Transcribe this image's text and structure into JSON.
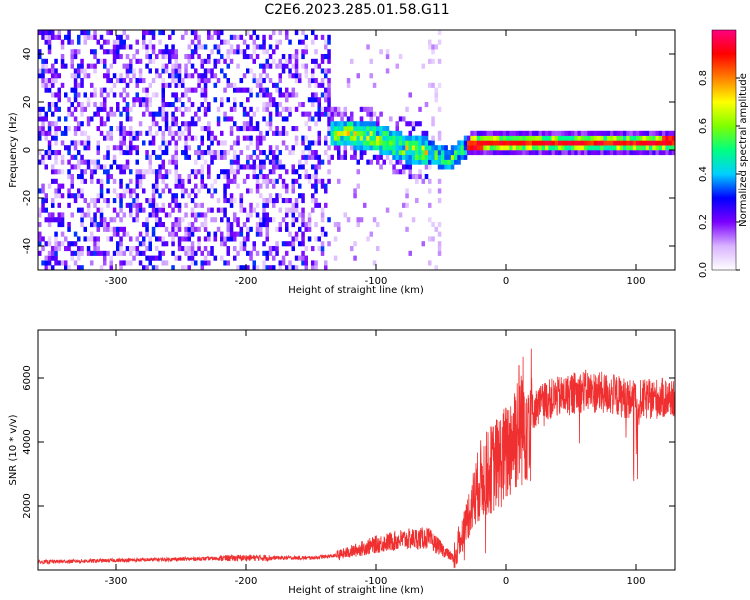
{
  "title": "C2E6.2023.285.01.58.G11",
  "chart_data": [
    {
      "type": "heatmap",
      "xlabel": "Height of straight line (km)",
      "ylabel": "Frequency (Hz)",
      "xlim": [
        -360,
        130
      ],
      "ylim": [
        -50,
        50
      ],
      "x_ticks": [
        -300,
        -200,
        -100,
        0,
        100
      ],
      "y_ticks": [
        -40,
        -20,
        0,
        20,
        40
      ],
      "colorbar": {
        "label": "Normalized spectral amplitude",
        "range": [
          0,
          1
        ],
        "ticks": [
          0.0,
          0.2,
          0.4,
          0.6,
          0.8
        ],
        "colors": [
          "#ffffff",
          "#d9b3ff",
          "#7a00ff",
          "#0000ff",
          "#00d0ff",
          "#00ff80",
          "#80ff00",
          "#ffff00",
          "#ff8000",
          "#ff0000",
          "#ff0080"
        ]
      },
      "ridge": {
        "x": [
          -260,
          -200,
          -150,
          -120,
          -100,
          -80,
          -60,
          -45,
          -30,
          0,
          50,
          100,
          130
        ],
        "freq": [
          8,
          7,
          6,
          6,
          4,
          0,
          -2,
          -5,
          1,
          1.5,
          2,
          2.5,
          3
        ]
      }
    },
    {
      "type": "line",
      "xlabel": "Height of straight line (km)",
      "ylabel": "SNR (10 * v/v)",
      "xlim": [
        -360,
        130
      ],
      "ylim": [
        0,
        7500
      ],
      "x_ticks": [
        -300,
        -200,
        -100,
        0,
        100
      ],
      "y_ticks": [
        2000,
        4000,
        6000
      ],
      "color": "#f03030",
      "trend": {
        "x": [
          -360,
          -300,
          -200,
          -150,
          -130,
          -100,
          -80,
          -60,
          -40,
          -30,
          -20,
          0,
          10,
          30,
          60,
          80,
          100,
          130
        ],
        "y": [
          250,
          300,
          380,
          380,
          450,
          800,
          950,
          1000,
          350,
          1600,
          2800,
          3600,
          4600,
          5300,
          5600,
          5500,
          5300,
          5400
        ]
      }
    }
  ]
}
